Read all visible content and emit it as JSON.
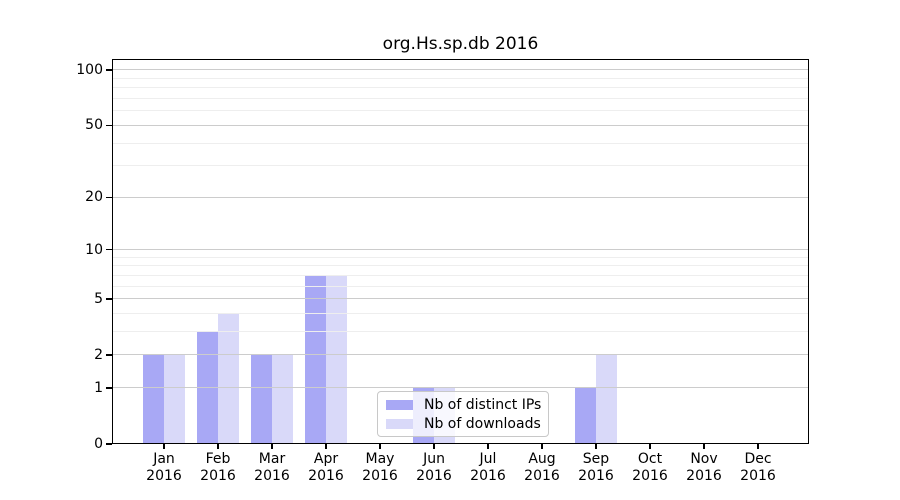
{
  "chart_data": {
    "type": "bar",
    "title": "org.Hs.sp.db 2016",
    "year": "2016",
    "months": [
      "Jan",
      "Feb",
      "Mar",
      "Apr",
      "May",
      "Jun",
      "Jul",
      "Aug",
      "Sep",
      "Oct",
      "Nov",
      "Dec"
    ],
    "series": [
      {
        "name": "Nb of distinct IPs",
        "color": "#a8a8f5",
        "values": [
          2,
          3,
          2,
          7,
          0,
          1,
          0,
          0,
          1,
          0,
          0,
          0
        ]
      },
      {
        "name": "Nb of downloads",
        "color": "#d9d9f9",
        "values": [
          2,
          4,
          2,
          7,
          0,
          1,
          0,
          0,
          2,
          0,
          0,
          0
        ]
      }
    ],
    "yscale": "log1p",
    "ylim": [
      0,
      100
    ],
    "yticks": [
      0,
      1,
      2,
      5,
      10,
      20,
      50,
      100
    ],
    "minor_gridlines": [
      3,
      4,
      6,
      7,
      8,
      9,
      30,
      40,
      60,
      70,
      80,
      90
    ],
    "grid": true,
    "legend_position": "lower center",
    "colors": {
      "major_grid": "#cccccc",
      "minor_grid": "#eeeeee",
      "axis": "#000000",
      "background": "#ffffff"
    }
  }
}
